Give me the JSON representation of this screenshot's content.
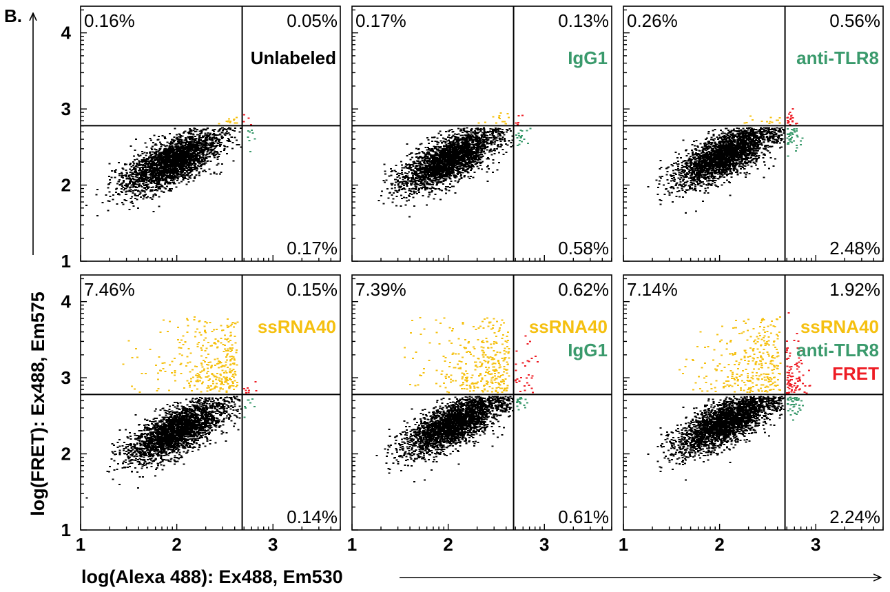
{
  "figure": {
    "panel_tag": "B."
  },
  "colors": {
    "unlabeled": "#000000",
    "igg1": "#3a9a6c",
    "anti_tlr8": "#3a9a6c",
    "ssrna40": "#f5c010",
    "fret": "#ee1c24",
    "gate_lines": "#000000"
  },
  "chart_data": {
    "type": "scatter",
    "layout": "2x3 grid of flow cytometry density plots with quadrant gates",
    "xlabel": "log(Alexa 488):  Ex488, Em530",
    "ylabel": "log(FRET):  Ex488, Em575",
    "xlim": [
      1,
      3.7
    ],
    "ylim": [
      1,
      4.35
    ],
    "x_ticks": [
      1,
      2,
      3
    ],
    "y_ticks": [
      1,
      2,
      3,
      4
    ],
    "x_gate": 2.68,
    "y_gate": 2.78,
    "panels": [
      {
        "id": "unlabeled",
        "quadrants": {
          "upper_left": "0.16%",
          "upper_right": "0.05%",
          "lower_right": "0.17%"
        },
        "sample_labels": [
          {
            "text": "Unlabeled",
            "color_key": "unlabeled"
          }
        ],
        "core": {
          "x_center": 1.95,
          "y_center": 2.32,
          "x_spread": 0.9,
          "y_spread": 0.6
        },
        "gated_counts": {
          "yellow": 12,
          "green": 8,
          "red": 4
        }
      },
      {
        "id": "igg1",
        "quadrants": {
          "upper_left": "0.17%",
          "upper_right": "0.13%",
          "lower_right": "0.58%"
        },
        "sample_labels": [
          {
            "text": "IgG1",
            "color_key": "igg1"
          }
        ],
        "core": {
          "x_center": 2.0,
          "y_center": 2.35,
          "x_spread": 0.9,
          "y_spread": 0.6
        },
        "gated_counts": {
          "yellow": 14,
          "green": 18,
          "red": 5
        }
      },
      {
        "id": "anti_tlr8",
        "quadrants": {
          "upper_left": "0.26%",
          "upper_right": "0.56%",
          "lower_right": "2.48%"
        },
        "sample_labels": [
          {
            "text": "anti-TLR8",
            "color_key": "anti_tlr8"
          }
        ],
        "core": {
          "x_center": 2.05,
          "y_center": 2.4,
          "x_spread": 0.9,
          "y_spread": 0.6
        },
        "gated_counts": {
          "yellow": 14,
          "green": 40,
          "red": 20
        }
      },
      {
        "id": "ssrna40",
        "quadrants": {
          "upper_left": "7.46%",
          "upper_right": "0.15%",
          "lower_right": "0.14%"
        },
        "sample_labels": [
          {
            "text": "ssRNA40",
            "color_key": "ssrna40"
          }
        ],
        "core": {
          "x_center": 2.0,
          "y_center": 2.32,
          "x_spread": 0.9,
          "y_spread": 0.65
        },
        "gated_counts": {
          "yellow": 330,
          "green": 8,
          "red": 8
        }
      },
      {
        "id": "ssrna40_igg1",
        "quadrants": {
          "upper_left": "7.39%",
          "upper_right": "0.62%",
          "lower_right": "0.61%"
        },
        "sample_labels": [
          {
            "text": "ssRNA40",
            "color_key": "ssrna40"
          },
          {
            "text": "IgG1",
            "color_key": "igg1"
          }
        ],
        "core": {
          "x_center": 2.05,
          "y_center": 2.4,
          "x_spread": 0.9,
          "y_spread": 0.6
        },
        "gated_counts": {
          "yellow": 330,
          "green": 18,
          "red": 30
        }
      },
      {
        "id": "ssrna40_anti_tlr8",
        "quadrants": {
          "upper_left": "7.14%",
          "upper_right": "1.92%",
          "lower_right": "2.24%"
        },
        "sample_labels": [
          {
            "text": "ssRNA40",
            "color_key": "ssrna40"
          },
          {
            "text": "anti-TLR8",
            "color_key": "anti_tlr8"
          },
          {
            "text": "FRET",
            "color_key": "fret"
          }
        ],
        "core": {
          "x_center": 2.05,
          "y_center": 2.42,
          "x_spread": 0.9,
          "y_spread": 0.6
        },
        "gated_counts": {
          "yellow": 300,
          "green": 40,
          "red": 90
        }
      }
    ]
  }
}
